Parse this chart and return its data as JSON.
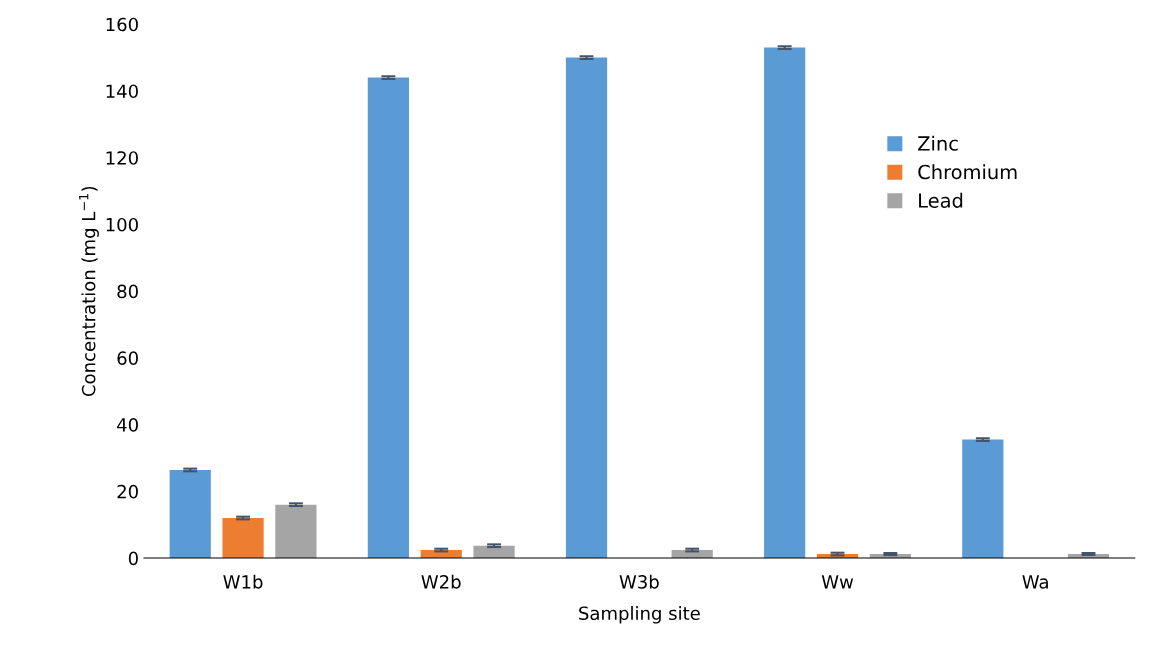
{
  "chart_data": {
    "type": "bar",
    "xlabel": "Sampling site",
    "ylabel": "Concentration (mg L$^{−1}$)",
    "categories": [
      "W1b",
      "W2b",
      "W3b",
      "Ww",
      "Wa"
    ],
    "series": [
      {
        "name": "Zinc",
        "color": "#5b9bd5",
        "values": [
          26.4,
          144,
          150,
          153,
          35.5
        ],
        "errors": [
          0.4,
          0.4,
          0.4,
          0.4,
          0.4
        ]
      },
      {
        "name": "Chromium",
        "color": "#ed7d31",
        "values": [
          12,
          2.4,
          0,
          1.2,
          0
        ],
        "errors": [
          0.4,
          0.4,
          null,
          0.4,
          null
        ]
      },
      {
        "name": "Lead",
        "color": "#a5a5a5",
        "values": [
          16,
          3.7,
          2.4,
          1.2,
          1.2
        ],
        "errors": [
          0.4,
          0.4,
          0.4,
          0.3,
          0.3
        ]
      }
    ],
    "ylim": [
      0,
      160
    ],
    "yticks": [
      0,
      20,
      40,
      60,
      80,
      100,
      120,
      140,
      160
    ],
    "grid": false,
    "legend": "right"
  }
}
